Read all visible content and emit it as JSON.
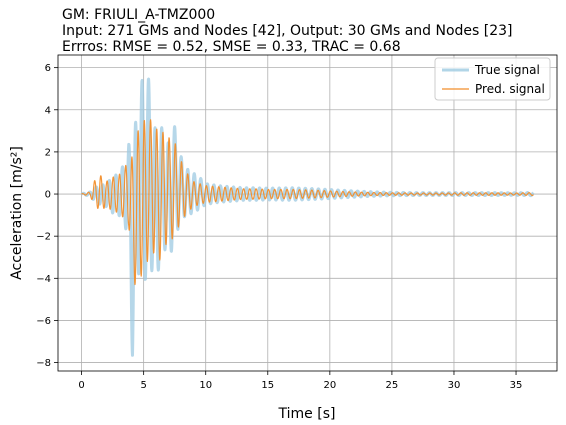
{
  "chart_data": {
    "type": "line",
    "title_lines": [
      "GM: FRIULI_A-TMZ000",
      "Input: 271 GMs and Nodes [42], Output: 30 GMs and Nodes [23]",
      "Errros: RMSE = 0.52, SMSE = 0.33, TRAC = 0.68"
    ],
    "xlabel": "Time [s]",
    "ylabel": "Acceleration [m/s²]",
    "xlim": [
      -1.9,
      38.3
    ],
    "ylim": [
      -8.4,
      6.6
    ],
    "xticks": [
      0,
      5,
      10,
      15,
      20,
      25,
      30,
      35
    ],
    "yticks": [
      -8,
      -6,
      -4,
      -2,
      0,
      2,
      4,
      6
    ],
    "grid": true,
    "legend_position": "top-right",
    "series": [
      {
        "name": "True signal",
        "color": "#9ecae1",
        "envelope": {
          "t": [
            0,
            0.7,
            1,
            1.5,
            2,
            2.5,
            3,
            3.5,
            3.8,
            4.1,
            4.4,
            4.7,
            5,
            5.3,
            5.6,
            5.9,
            6.2,
            6.5,
            6.8,
            7.1,
            7.4,
            7.7,
            8,
            8.5,
            9,
            9.5,
            10,
            11,
            12,
            13,
            14,
            15,
            17,
            19,
            21,
            23,
            25,
            27,
            29,
            31,
            33,
            35,
            36.4
          ],
          "upper": [
            0.02,
            0.1,
            0.3,
            0.4,
            0.5,
            0.8,
            1.0,
            1.5,
            2.4,
            1.6,
            3.8,
            4.9,
            5.8,
            5.7,
            5.0,
            3.2,
            2.4,
            3.3,
            2.5,
            2.4,
            3.4,
            2.8,
            1.8,
            1.2,
            1.0,
            0.8,
            0.5,
            0.4,
            0.35,
            0.3,
            0.3,
            0.28,
            0.3,
            0.25,
            0.18,
            0.12,
            0.08,
            0.07,
            0.07,
            0.07,
            0.07,
            0.06,
            0.08
          ],
          "lower": [
            -0.02,
            -0.1,
            -0.3,
            -0.5,
            -0.6,
            -0.9,
            -1.0,
            -1.5,
            -2.3,
            -7.8,
            -4.8,
            -3.3,
            -4.3,
            -3.8,
            -3.6,
            -3.8,
            -3.6,
            -2.3,
            -2.8,
            -3.0,
            -2.4,
            -1.8,
            -1.2,
            -1.0,
            -0.9,
            -0.7,
            -0.5,
            -0.4,
            -0.35,
            -0.3,
            -0.3,
            -0.28,
            -0.3,
            -0.25,
            -0.18,
            -0.12,
            -0.08,
            -0.07,
            -0.07,
            -0.07,
            -0.07,
            -0.06,
            -0.08
          ]
        }
      },
      {
        "name": "Pred. signal",
        "color": "#f28e2b",
        "envelope": {
          "t": [
            0,
            0.7,
            1,
            1.5,
            2,
            2.5,
            3,
            3.5,
            3.8,
            4.1,
            4.4,
            4.7,
            5,
            5.3,
            5.6,
            5.9,
            6.2,
            6.5,
            6.8,
            7.1,
            7.4,
            7.7,
            8,
            8.5,
            9,
            9.5,
            10,
            11,
            12,
            13,
            14,
            15,
            17,
            19,
            21,
            23,
            25,
            27,
            29,
            31,
            33,
            35,
            36.4
          ],
          "upper": [
            0.01,
            0.1,
            0.6,
            0.9,
            0.6,
            0.8,
            0.9,
            1.3,
            1.6,
            1.8,
            2.8,
            3.2,
            3.6,
            3.1,
            3.6,
            3.2,
            3.0,
            2.9,
            3.1,
            2.6,
            2.6,
            2.2,
            1.6,
            1.0,
            0.6,
            0.5,
            0.4,
            0.35,
            0.3,
            0.25,
            0.25,
            0.22,
            0.22,
            0.18,
            0.12,
            0.08,
            0.06,
            0.05,
            0.05,
            0.06,
            0.06,
            0.05,
            0.07
          ],
          "lower": [
            -0.01,
            -0.1,
            -0.5,
            -0.8,
            -0.6,
            -0.8,
            -0.9,
            -1.2,
            -1.5,
            -4.5,
            -4.2,
            -4.0,
            -3.7,
            -3.2,
            -2.4,
            -3.0,
            -3.2,
            -3.0,
            -2.4,
            -2.0,
            -2.2,
            -1.7,
            -1.3,
            -0.9,
            -0.6,
            -0.5,
            -0.4,
            -0.35,
            -0.3,
            -0.25,
            -0.25,
            -0.22,
            -0.22,
            -0.18,
            -0.12,
            -0.08,
            -0.06,
            -0.05,
            -0.05,
            -0.06,
            -0.06,
            -0.05,
            -0.07
          ]
        }
      }
    ]
  }
}
